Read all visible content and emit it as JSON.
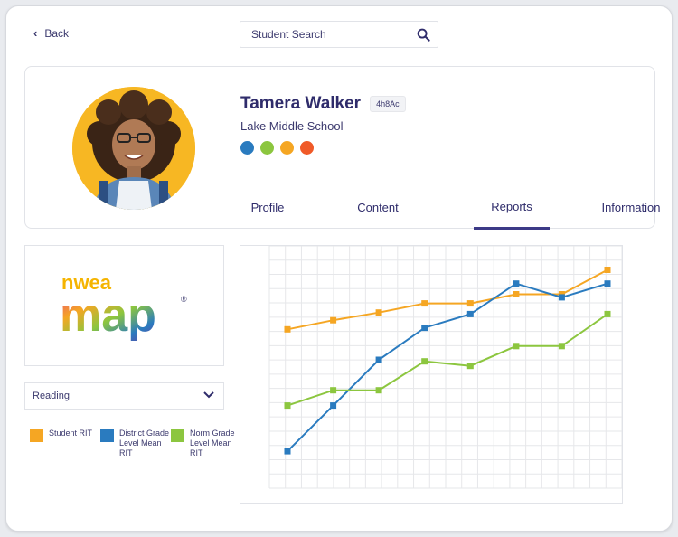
{
  "nav": {
    "back_label": "Back"
  },
  "search": {
    "placeholder": "Student Search"
  },
  "student": {
    "name": "Tamera Walker",
    "id": "4h8Ac",
    "school": "Lake Middle School",
    "status_dots": [
      "#2a7bbf",
      "#8cc63f",
      "#f5a623",
      "#f05a28"
    ]
  },
  "tabs": [
    {
      "label": "Profile",
      "active": false
    },
    {
      "label": "Content",
      "active": false
    },
    {
      "label": "Reports",
      "active": true
    },
    {
      "label": "Information",
      "active": false
    }
  ],
  "logo": {
    "top_text": "nwea",
    "main_text": "map",
    "mark": "®"
  },
  "subject_select": {
    "value": "Reading"
  },
  "legend": [
    {
      "label": "Student RIT",
      "color": "#f5a623"
    },
    {
      "label": "District Grade Level Mean RIT",
      "color": "#2a7bbf"
    },
    {
      "label": "Norm Grade Level Mean RIT",
      "color": "#8cc63f"
    }
  ],
  "chart_data": {
    "type": "line",
    "x": [
      1,
      2,
      3,
      4,
      5,
      6,
      7,
      8
    ],
    "ylim": [
      0,
      14
    ],
    "grid": true,
    "series": [
      {
        "name": "Student RIT",
        "color": "#f5a623",
        "values": [
          9.0,
          9.6,
          10.1,
          10.7,
          10.7,
          11.3,
          11.3,
          12.9
        ]
      },
      {
        "name": "District Grade Level Mean RIT",
        "color": "#2a7bbf",
        "values": [
          1.0,
          4.0,
          7.0,
          9.1,
          10.0,
          12.0,
          11.1,
          12.0
        ]
      },
      {
        "name": "Norm Grade Level Mean RIT",
        "color": "#8cc63f",
        "values": [
          4.0,
          5.0,
          5.0,
          6.9,
          6.6,
          7.9,
          7.9,
          10.0
        ]
      }
    ]
  }
}
